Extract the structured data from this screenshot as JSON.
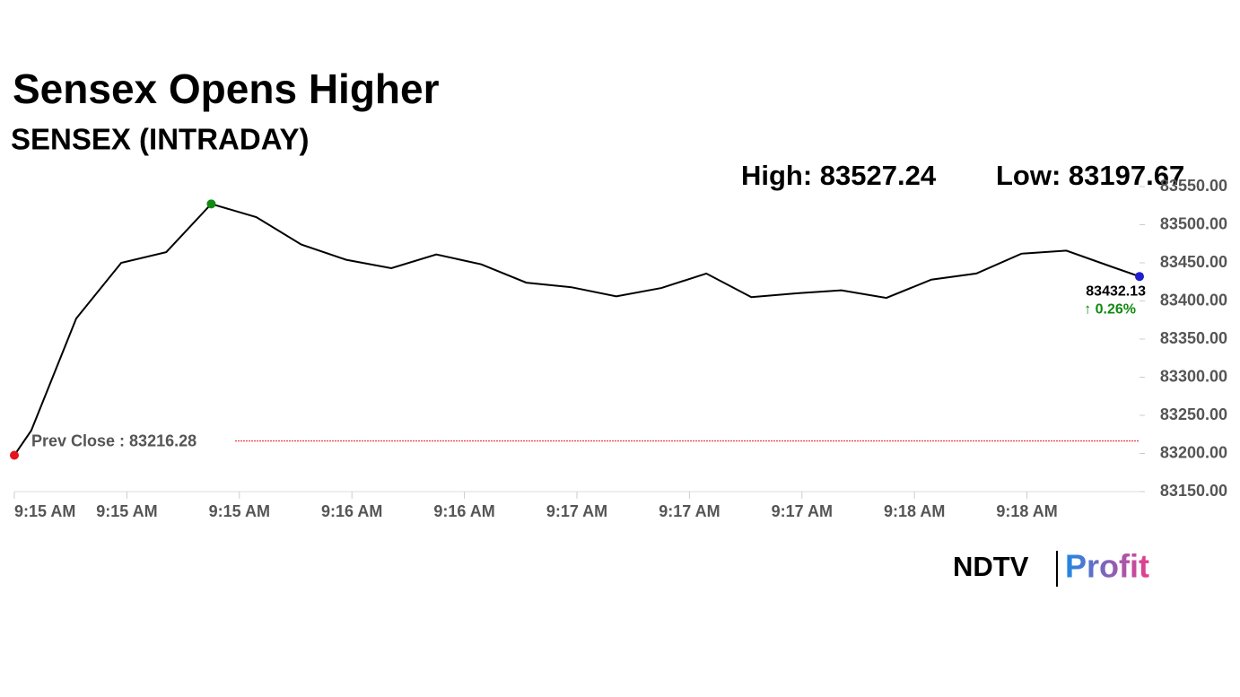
{
  "chart_data": {
    "type": "line",
    "title": "Sensex Opens Higher",
    "subtitle": "SENSEX (INTRADAY)",
    "high_label": "High: 83527.24",
    "low_label": "Low: 83197.67",
    "prev_close": 83216.28,
    "prev_close_label": "Prev Close : 83216.28",
    "last_label": "83432.13",
    "change_label": "↑ 0.26%",
    "x": [
      0,
      0.15,
      0.55,
      0.95,
      1.35,
      1.75,
      2.15,
      2.55,
      2.95,
      3.35,
      3.75,
      4.15,
      4.55,
      4.95,
      5.35,
      5.75,
      6.15,
      6.55,
      6.95,
      7.35,
      7.75,
      8.15,
      8.55,
      8.95,
      9.35,
      9.75,
      10
    ],
    "series": [
      {
        "name": "SENSEX",
        "color": "#000000",
        "values": [
          83197.67,
          83230,
          83377,
          83450,
          83464,
          83527.24,
          83510,
          83474,
          83454,
          83443,
          83461,
          83448,
          83424,
          83418,
          83406,
          83417,
          83436,
          83405,
          83410,
          83414,
          83404,
          83428,
          83436,
          83462,
          83466,
          83445,
          83432.13
        ]
      }
    ],
    "xlim": [
      0,
      10
    ],
    "xticks": [
      {
        "value": 0,
        "label": "9:15 AM"
      },
      {
        "value": 1,
        "label": "9:15 AM"
      },
      {
        "value": 2,
        "label": "9:15 AM"
      },
      {
        "value": 3,
        "label": "9:16 AM"
      },
      {
        "value": 4,
        "label": "9:16 AM"
      },
      {
        "value": 5,
        "label": "9:17 AM"
      },
      {
        "value": 6,
        "label": "9:17 AM"
      },
      {
        "value": 7,
        "label": "9:17 AM"
      },
      {
        "value": 8,
        "label": "9:18 AM"
      },
      {
        "value": 9,
        "label": "9:18 AM"
      }
    ],
    "ylim": [
      83150,
      83550
    ],
    "yticks": [
      {
        "value": 83150,
        "label": "83150.00"
      },
      {
        "value": 83200,
        "label": "83200.00"
      },
      {
        "value": 83250,
        "label": "83250.00"
      },
      {
        "value": 83300,
        "label": "83300.00"
      },
      {
        "value": 83350,
        "label": "83350.00"
      },
      {
        "value": 83400,
        "label": "83400.00"
      },
      {
        "value": 83450,
        "label": "83450.00"
      },
      {
        "value": 83500,
        "label": "83500.00"
      },
      {
        "value": 83550,
        "label": "83550.00"
      }
    ],
    "marker_colors": {
      "low": "#e8141c",
      "high": "#118a11",
      "last": "#1f1fcf"
    },
    "prev_close_color": "#e8141c",
    "change_color": "#118a11"
  },
  "logo": {
    "brand": "NDTV",
    "product": "Profit"
  }
}
